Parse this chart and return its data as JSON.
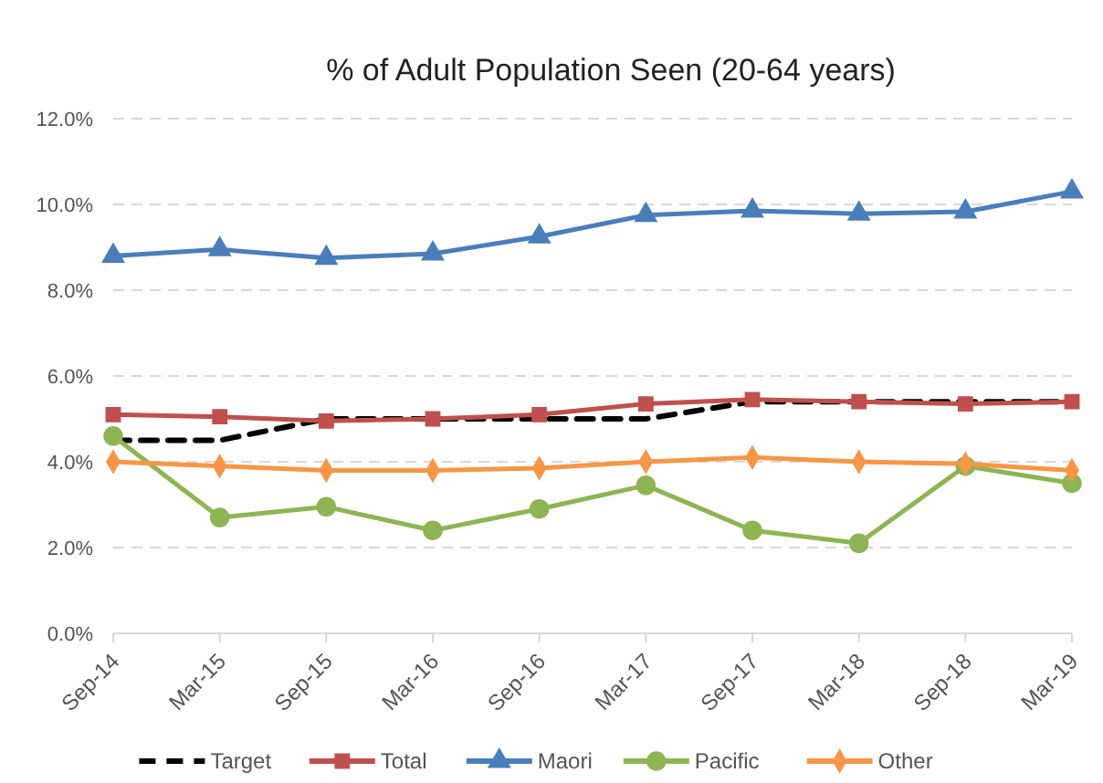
{
  "chart_data": {
    "type": "line",
    "title": "% of Adult Population Seen (20-64 years)",
    "categories": [
      "Sep-14",
      "Mar-15",
      "Sep-15",
      "Mar-16",
      "Sep-16",
      "Mar-17",
      "Sep-17",
      "Mar-18",
      "Sep-18",
      "Mar-19"
    ],
    "series": [
      {
        "name": "Target",
        "color": "#000000",
        "marker": "none",
        "line_style": "dashed",
        "values": [
          4.5,
          4.5,
          5.0,
          5.0,
          5.0,
          5.0,
          5.4,
          5.4,
          5.4,
          5.4
        ]
      },
      {
        "name": "Total",
        "color": "#c0504d",
        "marker": "square",
        "values": [
          5.1,
          5.05,
          4.95,
          5.0,
          5.1,
          5.35,
          5.45,
          5.4,
          5.35,
          5.4
        ]
      },
      {
        "name": "Maori",
        "color": "#4a7ebb",
        "marker": "triangle",
        "values": [
          8.8,
          8.95,
          8.75,
          8.85,
          9.25,
          9.75,
          9.85,
          9.78,
          9.83,
          10.3
        ]
      },
      {
        "name": "Pacific",
        "color": "#8db553",
        "marker": "circle",
        "values": [
          4.6,
          2.7,
          2.95,
          2.4,
          2.9,
          3.45,
          2.4,
          2.1,
          3.9,
          3.5
        ]
      },
      {
        "name": "Other",
        "color": "#f79646",
        "marker": "diamond",
        "values": [
          4.0,
          3.9,
          3.8,
          3.8,
          3.85,
          4.0,
          4.1,
          4.0,
          3.95,
          3.8
        ]
      }
    ],
    "ylim": [
      0,
      12
    ],
    "yticks": [
      {
        "value": 0,
        "label": "0.0%"
      },
      {
        "value": 2,
        "label": "2.0%"
      },
      {
        "value": 4,
        "label": "4.0%"
      },
      {
        "value": 6,
        "label": "6.0%"
      },
      {
        "value": 8,
        "label": "8.0%"
      },
      {
        "value": 10,
        "label": "10.0%"
      },
      {
        "value": 12,
        "label": "12.0%"
      }
    ],
    "grid": "y",
    "legend": "bottom"
  }
}
